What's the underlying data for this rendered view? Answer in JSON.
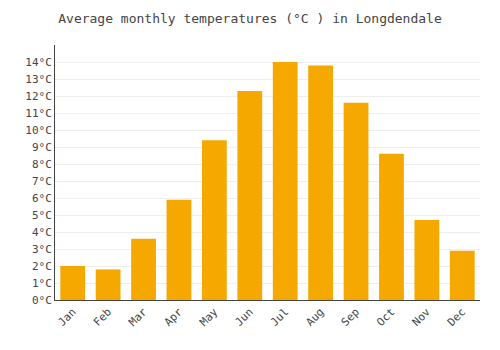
{
  "chart_data": {
    "type": "bar",
    "title": "Average monthly temperatures (°C ) in Longdendale",
    "categories": [
      "Jan",
      "Feb",
      "Mar",
      "Apr",
      "May",
      "Jun",
      "Jul",
      "Aug",
      "Sep",
      "Oct",
      "Nov",
      "Dec"
    ],
    "values": [
      2.0,
      1.8,
      3.6,
      5.9,
      9.4,
      12.3,
      14.0,
      13.8,
      11.6,
      8.6,
      4.7,
      2.9
    ],
    "color": "#F5A800",
    "ylim": [
      0,
      15
    ],
    "yticks": [
      {
        "value": 0,
        "label": "0°C"
      },
      {
        "value": 1,
        "label": "1°C"
      },
      {
        "value": 2,
        "label": "2°C"
      },
      {
        "value": 3,
        "label": "3°C"
      },
      {
        "value": 4,
        "label": "4°C"
      },
      {
        "value": 5,
        "label": "5°C"
      },
      {
        "value": 6,
        "label": "6°C"
      },
      {
        "value": 7,
        "label": "7°C"
      },
      {
        "value": 8,
        "label": "8°C"
      },
      {
        "value": 9,
        "label": "9°C"
      },
      {
        "value": 10,
        "label": "10°C"
      },
      {
        "value": 11,
        "label": "11°C"
      },
      {
        "value": 12,
        "label": "12°C"
      },
      {
        "value": 13,
        "label": "13°C"
      },
      {
        "value": 14,
        "label": "14°C"
      }
    ],
    "grid": true
  }
}
